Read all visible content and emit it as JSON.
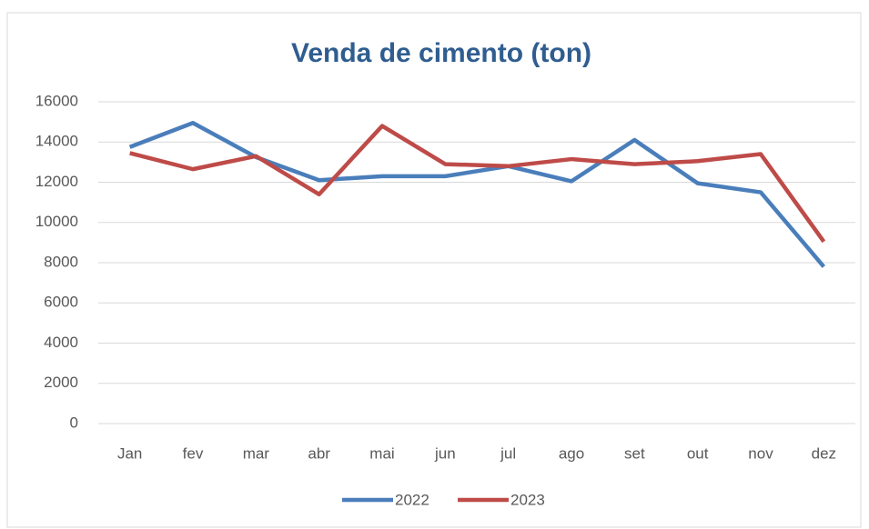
{
  "chart_data": {
    "type": "line",
    "title": "Venda de cimento (ton)",
    "categories": [
      "Jan",
      "fev",
      "mar",
      "abr",
      "mai",
      "jun",
      "jul",
      "ago",
      "set",
      "out",
      "nov",
      "dez"
    ],
    "series": [
      {
        "name": "2022",
        "color": "#4a7ebb",
        "values": [
          13750,
          14950,
          13250,
          12100,
          12300,
          12300,
          12800,
          12050,
          14100,
          11950,
          11500,
          7800
        ]
      },
      {
        "name": "2023",
        "color": "#be4b48",
        "values": [
          13450,
          12650,
          13300,
          11400,
          14800,
          12900,
          12800,
          13150,
          12900,
          13050,
          13400,
          9050
        ]
      }
    ],
    "ylim": [
      0,
      16000
    ],
    "yticks": [
      0,
      2000,
      4000,
      6000,
      8000,
      10000,
      12000,
      14000,
      16000
    ],
    "grid": true,
    "legend": "bottom"
  }
}
